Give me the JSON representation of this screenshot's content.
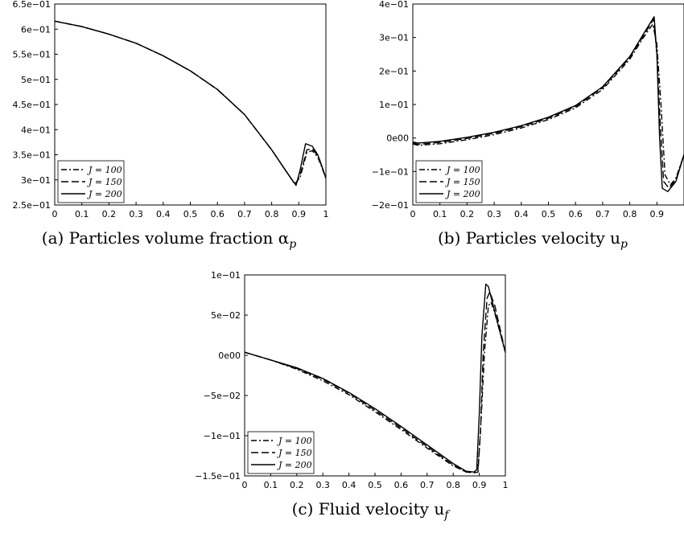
{
  "chart_data": [
    {
      "type": "line",
      "caption": "(a) Particles volume fraction α",
      "caption_sub": "p",
      "xlim": [
        0,
        1
      ],
      "ylim": [
        0.25,
        0.65
      ],
      "x_ticks": [
        "0",
        "0.1",
        "0.2",
        "0.3",
        "0.4",
        "0.5",
        "0.6",
        "0.7",
        "0.8",
        "0.9",
        "1"
      ],
      "y_ticks": [
        "2.5e−01",
        "3e−01",
        "3.5e−01",
        "4e−01",
        "4.5e−01",
        "5e−01",
        "5.5e−01",
        "6e−01",
        "6.5e−01"
      ],
      "legend_position": "bottom-left",
      "series": [
        {
          "name": "J = 100",
          "style": "dashdot",
          "x": [
            0,
            0.1,
            0.2,
            0.3,
            0.4,
            0.5,
            0.6,
            0.7,
            0.8,
            0.85,
            0.885,
            0.905,
            0.93,
            0.95,
            0.97,
            0.985,
            1.0
          ],
          "y": [
            0.616,
            0.605,
            0.59,
            0.572,
            0.547,
            0.517,
            0.48,
            0.43,
            0.36,
            0.32,
            0.292,
            0.305,
            0.355,
            0.358,
            0.345,
            0.325,
            0.303
          ]
        },
        {
          "name": "J = 150",
          "style": "dashed",
          "x": [
            0,
            0.1,
            0.2,
            0.3,
            0.4,
            0.5,
            0.6,
            0.7,
            0.8,
            0.85,
            0.888,
            0.905,
            0.93,
            0.95,
            0.97,
            0.985,
            1.0
          ],
          "y": [
            0.616,
            0.605,
            0.59,
            0.572,
            0.547,
            0.517,
            0.48,
            0.43,
            0.36,
            0.32,
            0.29,
            0.31,
            0.36,
            0.362,
            0.348,
            0.327,
            0.303
          ]
        },
        {
          "name": "J = 200",
          "style": "solid",
          "x": [
            0,
            0.1,
            0.2,
            0.3,
            0.4,
            0.5,
            0.6,
            0.7,
            0.8,
            0.85,
            0.89,
            0.905,
            0.925,
            0.95,
            0.97,
            0.985,
            1.0
          ],
          "y": [
            0.616,
            0.605,
            0.59,
            0.572,
            0.547,
            0.517,
            0.48,
            0.43,
            0.36,
            0.32,
            0.289,
            0.32,
            0.372,
            0.367,
            0.35,
            0.328,
            0.303
          ]
        }
      ]
    },
    {
      "type": "line",
      "caption": "(b) Particles velocity u",
      "caption_sub": "p",
      "xlim": [
        0,
        1
      ],
      "ylim": [
        -0.2,
        0.4
      ],
      "x_ticks": [
        "0",
        "0.1",
        "0.2",
        "0.3",
        "0.4",
        "0.5",
        "0.6",
        "0.7",
        "0.8",
        "0.9"
      ],
      "y_ticks": [
        "−2e−01",
        "−1e−01",
        "0e00",
        "1e−01",
        "2e−01",
        "3e−01",
        "4e−01"
      ],
      "legend_position": "bottom-left",
      "series": [
        {
          "name": "J = 100",
          "style": "dashdot",
          "x": [
            0,
            0.02,
            0.1,
            0.2,
            0.3,
            0.4,
            0.5,
            0.6,
            0.7,
            0.8,
            0.85,
            0.885,
            0.9,
            0.915,
            0.93,
            0.95,
            0.97,
            1.0
          ],
          "y": [
            -0.018,
            -0.022,
            -0.017,
            -0.005,
            0.01,
            0.03,
            0.055,
            0.09,
            0.145,
            0.235,
            0.3,
            0.34,
            0.28,
            0.1,
            -0.11,
            -0.14,
            -0.12,
            -0.05
          ]
        },
        {
          "name": "J = 150",
          "style": "dashed",
          "x": [
            0,
            0.02,
            0.1,
            0.2,
            0.3,
            0.4,
            0.5,
            0.6,
            0.7,
            0.8,
            0.85,
            0.888,
            0.9,
            0.912,
            0.925,
            0.945,
            0.97,
            1.0
          ],
          "y": [
            -0.015,
            -0.019,
            -0.013,
            -0.001,
            0.014,
            0.034,
            0.059,
            0.094,
            0.15,
            0.24,
            0.305,
            0.355,
            0.25,
            0.05,
            -0.13,
            -0.15,
            -0.125,
            -0.05
          ]
        },
        {
          "name": "J = 200",
          "style": "solid",
          "x": [
            0,
            0.02,
            0.1,
            0.2,
            0.3,
            0.4,
            0.5,
            0.6,
            0.7,
            0.8,
            0.85,
            0.89,
            0.9,
            0.91,
            0.92,
            0.94,
            0.97,
            1.0
          ],
          "y": [
            -0.012,
            -0.015,
            -0.01,
            0.002,
            0.017,
            0.037,
            0.062,
            0.097,
            0.153,
            0.243,
            0.31,
            0.362,
            0.25,
            0.0,
            -0.15,
            -0.16,
            -0.13,
            -0.05
          ]
        }
      ]
    },
    {
      "type": "line",
      "caption": "(c) Fluid velocity u",
      "caption_sub": "f",
      "xlim": [
        0,
        1
      ],
      "ylim": [
        -0.16,
        0.1
      ],
      "x_ticks": [
        "0",
        "0.1",
        "0.2",
        "0.3",
        "0.4",
        "0.5",
        "0.6",
        "0.7",
        "0.8",
        "0.9",
        "1"
      ],
      "y_ticks": [
        "−1.5e−01",
        "−1e−01",
        "−5e−02",
        "0e00",
        "5e−02",
        "1e−01"
      ],
      "legend_position": "bottom-left",
      "series": [
        {
          "name": "J = 100",
          "style": "dashdot",
          "x": [
            0,
            0.1,
            0.2,
            0.3,
            0.4,
            0.5,
            0.6,
            0.7,
            0.8,
            0.85,
            0.88,
            0.895,
            0.905,
            0.92,
            0.935,
            0.945,
            0.96,
            0.98,
            1.0
          ],
          "y": [
            0,
            -0.01,
            -0.022,
            -0.037,
            -0.055,
            -0.077,
            -0.1,
            -0.124,
            -0.147,
            -0.155,
            -0.155,
            -0.15,
            -0.1,
            0.0,
            0.06,
            0.065,
            0.05,
            0.025,
            0.0
          ]
        },
        {
          "name": "J = 150",
          "style": "dashed",
          "x": [
            0,
            0.1,
            0.2,
            0.3,
            0.4,
            0.5,
            0.6,
            0.7,
            0.8,
            0.85,
            0.88,
            0.895,
            0.905,
            0.915,
            0.93,
            0.94,
            0.96,
            0.98,
            1.0
          ],
          "y": [
            0,
            -0.01,
            -0.021,
            -0.035,
            -0.053,
            -0.075,
            -0.098,
            -0.122,
            -0.146,
            -0.155,
            -0.156,
            -0.155,
            -0.1,
            0.0,
            0.07,
            0.078,
            0.06,
            0.03,
            0.0
          ]
        },
        {
          "name": "J = 200",
          "style": "solid",
          "x": [
            0,
            0.1,
            0.2,
            0.3,
            0.4,
            0.5,
            0.6,
            0.7,
            0.8,
            0.85,
            0.88,
            0.89,
            0.9,
            0.91,
            0.925,
            0.935,
            0.95,
            0.975,
            1.0
          ],
          "y": [
            0,
            -0.01,
            -0.02,
            -0.034,
            -0.052,
            -0.073,
            -0.096,
            -0.12,
            -0.144,
            -0.154,
            -0.155,
            -0.152,
            -0.08,
            0.02,
            0.088,
            0.085,
            0.065,
            0.032,
            0.0
          ]
        }
      ]
    }
  ]
}
